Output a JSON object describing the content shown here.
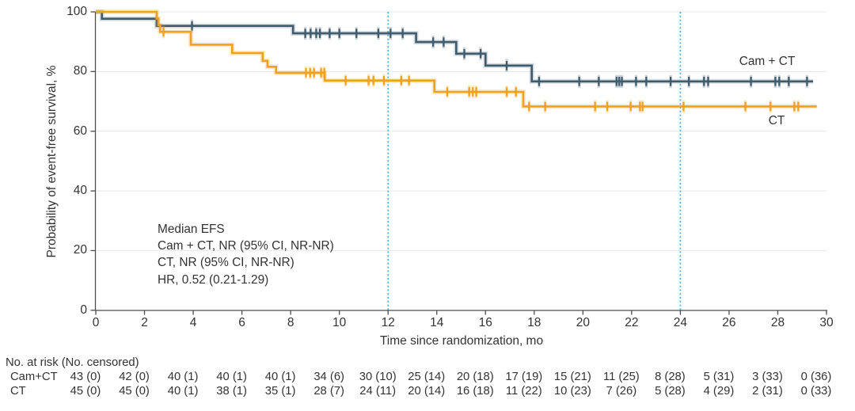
{
  "figure": {
    "y_axis_title": "Probability of event-free survival, %",
    "x_axis_title": "Time since randomization, mo",
    "y_ticks": [
      0,
      20,
      40,
      60,
      80,
      100
    ],
    "x_ticks": [
      0,
      2,
      4,
      6,
      8,
      10,
      12,
      14,
      16,
      18,
      20,
      22,
      24,
      26,
      28,
      30
    ],
    "annotation": [
      "Median EFS",
      "Cam + CT, NR (95% CI, NR-NR)",
      "CT, NR (95% CI, NR-NR)",
      "HR, 0.52 (0.21-1.29)"
    ],
    "colors": {
      "cam_ct": "#3f5c6e",
      "ct": "#f0a11d",
      "reference_line": "#47b6e2",
      "gridline": "#eaeaea",
      "axis": "#4d4d4d",
      "text": "#333333"
    }
  },
  "chart_data": {
    "type": "line",
    "subtype": "kaplan-meier-step",
    "xlabel": "Time since randomization, mo",
    "ylabel": "Probability of event-free survival, %",
    "xlim": [
      0,
      30
    ],
    "ylim": [
      0,
      100
    ],
    "grid": "horizontal",
    "reference_lines_x": [
      12,
      24
    ],
    "series": [
      {
        "name": "Cam + CT",
        "color": "#3f5c6e",
        "steps": [
          [
            0,
            100
          ],
          [
            0.25,
            97.7
          ],
          [
            2.5,
            95.3
          ],
          [
            8.1,
            92.8
          ],
          [
            13.15,
            89.9
          ],
          [
            14.8,
            86.0
          ],
          [
            16.0,
            82.0
          ],
          [
            17.9,
            76.7
          ]
        ],
        "end_time": 29.45,
        "censor_marks": [
          [
            3.95,
            95.3
          ],
          [
            8.6,
            92.8
          ],
          [
            8.82,
            92.8
          ],
          [
            9.05,
            92.8
          ],
          [
            9.2,
            92.8
          ],
          [
            9.6,
            92.8
          ],
          [
            10.0,
            92.8
          ],
          [
            10.7,
            92.8
          ],
          [
            11.6,
            92.8
          ],
          [
            12.1,
            92.8
          ],
          [
            12.6,
            92.8
          ],
          [
            13.85,
            89.9
          ],
          [
            14.28,
            89.9
          ],
          [
            15.13,
            86.0
          ],
          [
            15.8,
            86.0
          ],
          [
            16.87,
            82.0
          ],
          [
            18.2,
            76.7
          ],
          [
            19.85,
            76.7
          ],
          [
            20.65,
            76.7
          ],
          [
            21.38,
            76.7
          ],
          [
            21.49,
            76.7
          ],
          [
            21.6,
            76.7
          ],
          [
            22.18,
            76.7
          ],
          [
            22.6,
            76.7
          ],
          [
            23.6,
            76.7
          ],
          [
            24.35,
            76.7
          ],
          [
            24.97,
            76.7
          ],
          [
            25.14,
            76.7
          ],
          [
            26.9,
            76.7
          ],
          [
            27.9,
            76.7
          ],
          [
            28.06,
            76.7
          ],
          [
            28.45,
            76.7
          ],
          [
            29.2,
            76.7
          ]
        ]
      },
      {
        "name": "CT",
        "color": "#f0a11d",
        "steps": [
          [
            0,
            100
          ],
          [
            2.5,
            97.8
          ],
          [
            2.57,
            95.6
          ],
          [
            2.64,
            93.3
          ],
          [
            3.9,
            89.0
          ],
          [
            5.6,
            86.2
          ],
          [
            6.85,
            83.6
          ],
          [
            7.05,
            81.6
          ],
          [
            7.4,
            79.6
          ],
          [
            9.4,
            77.0
          ],
          [
            13.9,
            73.2
          ],
          [
            17.55,
            68.3
          ]
        ],
        "end_time": 29.6,
        "censor_marks": [
          [
            2.78,
            93.3
          ],
          [
            8.63,
            79.6
          ],
          [
            8.8,
            79.6
          ],
          [
            8.96,
            79.6
          ],
          [
            9.25,
            79.6
          ],
          [
            9.38,
            79.6
          ],
          [
            10.26,
            77.0
          ],
          [
            11.2,
            77.0
          ],
          [
            11.4,
            77.0
          ],
          [
            11.83,
            77.0
          ],
          [
            12.54,
            77.0
          ],
          [
            12.86,
            77.0
          ],
          [
            14.43,
            73.2
          ],
          [
            15.33,
            73.2
          ],
          [
            15.48,
            73.2
          ],
          [
            15.62,
            73.2
          ],
          [
            16.87,
            73.2
          ],
          [
            17.25,
            73.2
          ],
          [
            17.79,
            68.3
          ],
          [
            18.45,
            68.3
          ],
          [
            20.5,
            68.3
          ],
          [
            21.0,
            68.3
          ],
          [
            21.96,
            68.3
          ],
          [
            22.34,
            68.3
          ],
          [
            22.45,
            68.3
          ],
          [
            24.13,
            68.3
          ],
          [
            26.67,
            68.3
          ],
          [
            27.7,
            68.3
          ],
          [
            28.68,
            68.3
          ],
          [
            28.84,
            68.3
          ]
        ]
      }
    ],
    "annotations": [
      "Median EFS",
      "Cam + CT, NR (95% CI, NR-NR)",
      "CT, NR (95% CI, NR-NR)",
      "HR, 0.52 (0.21-1.29)"
    ]
  },
  "curve_labels": {
    "cam_ct": "Cam + CT",
    "ct": "CT"
  },
  "risk_table": {
    "header": "No. at risk (No. censored)",
    "times": [
      0,
      2,
      4,
      6,
      8,
      10,
      12,
      14,
      16,
      18,
      20,
      22,
      24,
      26,
      28,
      30
    ],
    "rows": [
      {
        "label": "Cam+CT",
        "values": [
          "43 (0)",
          "42 (0)",
          "40 (1)",
          "40 (1)",
          "40 (1)",
          "34 (6)",
          "30 (10)",
          "25 (14)",
          "20 (18)",
          "17 (19)",
          "15 (21)",
          "11 (25)",
          "8 (28)",
          "5 (31)",
          "3 (33)",
          "0 (36)"
        ]
      },
      {
        "label": "CT",
        "values": [
          "45 (0)",
          "45 (0)",
          "40 (1)",
          "38 (1)",
          "35 (1)",
          "28 (7)",
          "24 (11)",
          "20 (14)",
          "16 (18)",
          "11 (22)",
          "10 (23)",
          "7 (26)",
          "5 (28)",
          "4 (29)",
          "2 (31)",
          "0 (33)"
        ]
      }
    ]
  }
}
